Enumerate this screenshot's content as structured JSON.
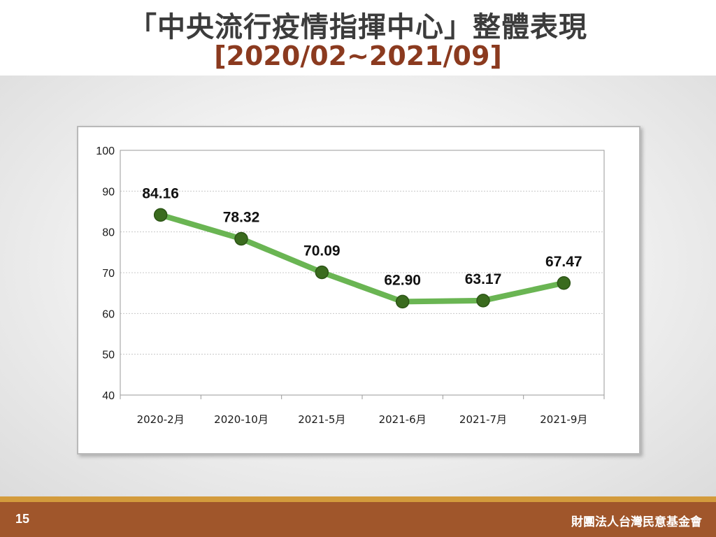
{
  "slide": {
    "title": "「中央流行疫情指揮中心」整體表現",
    "subtitle": "[2020/02~2021/09]",
    "page_number": "15",
    "organization": "財團法人台灣民意基金會"
  },
  "colors": {
    "line": "#6ab553",
    "marker": "#3a6b1e",
    "title": "#3c3c3c",
    "subtitle": "#8b3a1f",
    "footer": "#a0562b",
    "footer_accent": "#d39b3c"
  },
  "chart_data": {
    "type": "line",
    "title": "",
    "xlabel": "",
    "ylabel": "",
    "categories": [
      "2020-2月",
      "2020-10月",
      "2021-5月",
      "2021-6月",
      "2021-7月",
      "2021-9月"
    ],
    "series": [
      {
        "values": [
          84.16,
          78.32,
          70.09,
          62.9,
          63.17,
          67.47
        ]
      }
    ],
    "data_labels": [
      "84.16",
      "78.32",
      "70.09",
      "62.90",
      "63.17",
      "67.47"
    ],
    "ylim": [
      40,
      100
    ],
    "yticks": [
      "40",
      "50",
      "60",
      "70",
      "80",
      "90",
      "100"
    ],
    "grid": true,
    "legend": "none"
  }
}
